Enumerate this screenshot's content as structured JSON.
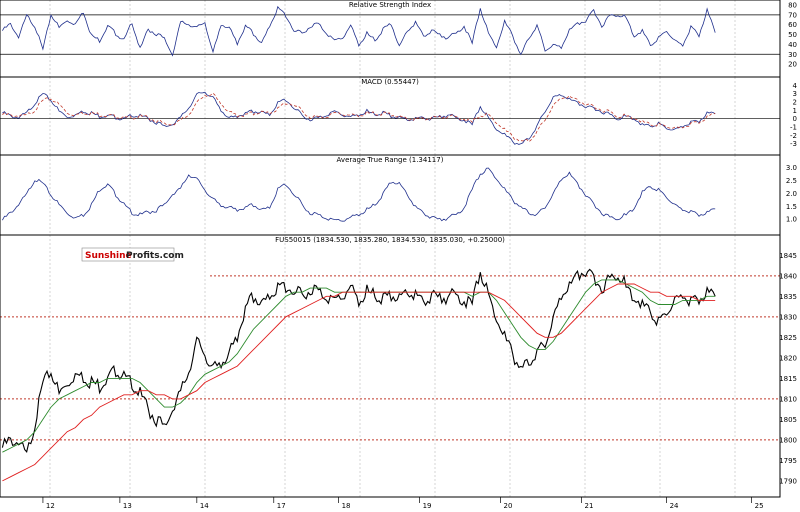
{
  "branding": {
    "logo_word1": "Sunshine",
    "logo_word2": "Profits.com",
    "logo_color1": "#cc0000",
    "logo_color2": "#222222"
  },
  "colors": {
    "rsi": "#1f2f8c",
    "macd": "#1f2f8c",
    "macd_signal": "#c0392b",
    "atr": "#1f2f8c",
    "price": "#000000",
    "ma_short": "#2e8b2e",
    "ma_long": "#e02020",
    "resistance": "#c0392b"
  },
  "chart_data": [
    {
      "type": "line",
      "id": "rsi",
      "title": "Relative Strength Index",
      "ylim": [
        10,
        80
      ],
      "yticks": [
        20,
        30,
        40,
        50,
        60,
        70,
        80
      ],
      "levels": [
        30,
        70
      ],
      "x": [
        0,
        1,
        2,
        3,
        4,
        5,
        6,
        7,
        8,
        9,
        10,
        11,
        12,
        13,
        14,
        15,
        16,
        17,
        18,
        19,
        20,
        21,
        22,
        23,
        24,
        25,
        26,
        27,
        28,
        29,
        30,
        31,
        32,
        33,
        34,
        35,
        36,
        37,
        38,
        39,
        40,
        41,
        42,
        43,
        44,
        45,
        46,
        47,
        48,
        49,
        50,
        51,
        52,
        53,
        54,
        55,
        56,
        57,
        58,
        59,
        60,
        61,
        62,
        63,
        64,
        65,
        66,
        67,
        68,
        69,
        70,
        71,
        72,
        73,
        74,
        75,
        76,
        77,
        78,
        79,
        80,
        81,
        82,
        83,
        84,
        85,
        86,
        87,
        88
      ],
      "series": [
        {
          "values": [
            55,
            62,
            48,
            70,
            60,
            35,
            72,
            58,
            66,
            62,
            74,
            50,
            45,
            60,
            52,
            45,
            64,
            36,
            56,
            52,
            47,
            30,
            63,
            62,
            58,
            64,
            32,
            62,
            58,
            42,
            60,
            52,
            42,
            60,
            78,
            70,
            55,
            52,
            60,
            62,
            53,
            45,
            48,
            60,
            40,
            52,
            45,
            56,
            62,
            38,
            55,
            63,
            50,
            55,
            50,
            48,
            52,
            60,
            42,
            78,
            52,
            38,
            64,
            50,
            30,
            48,
            60,
            35,
            40,
            38,
            55,
            62,
            65,
            75,
            60,
            70,
            72,
            68,
            50,
            55,
            40,
            48,
            55,
            45,
            40,
            58,
            50,
            76,
            52
          ]
        }
      ]
    },
    {
      "type": "line",
      "id": "macd",
      "title": "MACD (0.55447)",
      "ylim": [
        -4,
        4.4
      ],
      "yticks": [
        -3,
        -2,
        -1,
        0,
        1,
        2,
        3,
        4
      ],
      "levels": [
        0
      ],
      "x": [
        0,
        1,
        2,
        3,
        4,
        5,
        6,
        7,
        8,
        9,
        10,
        11,
        12,
        13,
        14,
        15,
        16,
        17,
        18,
        19,
        20,
        21,
        22,
        23,
        24,
        25,
        26,
        27,
        28,
        29,
        30,
        31,
        32,
        33,
        34,
        35,
        36,
        37,
        38,
        39,
        40,
        41,
        42,
        43,
        44,
        45,
        46,
        47,
        48,
        49,
        50,
        51,
        52,
        53,
        54,
        55,
        56,
        57,
        58,
        59,
        60,
        61,
        62,
        63,
        64,
        65,
        66,
        67,
        68,
        69,
        70,
        71,
        72,
        73,
        74,
        75,
        76,
        77,
        78,
        79,
        80,
        81,
        82,
        83,
        84,
        85,
        86,
        87,
        88
      ],
      "series": [
        {
          "values": [
            0.8,
            0.5,
            0.2,
            0.8,
            2.0,
            3.0,
            2.4,
            1.0,
            0.4,
            0.6,
            1.0,
            0.8,
            0.4,
            0.5,
            0.3,
            0.0,
            0.6,
            0.4,
            0.1,
            -0.3,
            -0.8,
            -0.6,
            0.2,
            1.5,
            3.0,
            3.4,
            2.6,
            1.2,
            0.2,
            0.4,
            0.8,
            1.0,
            0.9,
            0.6,
            2.0,
            2.4,
            1.4,
            0.5,
            0.1,
            0.2,
            0.6,
            1.0,
            0.6,
            0.3,
            0.5,
            1.0,
            0.6,
            0.8,
            0.4,
            0.2,
            0.0,
            0.1,
            0.3,
            0.1,
            0.3,
            0.6,
            0.2,
            0.0,
            -0.6,
            1.6,
            0.2,
            -1.2,
            -1.8,
            -2.6,
            -3.0,
            -2.2,
            -0.8,
            1.0,
            2.6,
            3.0,
            2.4,
            2.0,
            1.6,
            1.3,
            1.0,
            0.6,
            0.2,
            0.4,
            0.2,
            -0.6,
            -0.8,
            -0.4,
            -1.0,
            -1.2,
            -0.8,
            -0.4,
            -0.2,
            0.8,
            0.6
          ]
        },
        {
          "values": [
            0.6,
            0.6,
            0.4,
            0.5,
            1.2,
            2.2,
            2.6,
            1.8,
            0.9,
            0.6,
            0.8,
            0.8,
            0.6,
            0.5,
            0.4,
            0.2,
            0.3,
            0.4,
            0.2,
            -0.1,
            -0.5,
            -0.6,
            -0.2,
            0.7,
            2.0,
            3.0,
            3.0,
            2.0,
            0.9,
            0.5,
            0.6,
            0.8,
            0.9,
            0.8,
            1.3,
            2.0,
            1.8,
            1.0,
            0.4,
            0.3,
            0.4,
            0.8,
            0.7,
            0.5,
            0.4,
            0.8,
            0.7,
            0.7,
            0.6,
            0.3,
            0.1,
            0.1,
            0.2,
            0.2,
            0.2,
            0.4,
            0.3,
            0.1,
            -0.3,
            0.5,
            0.6,
            -0.4,
            -1.2,
            -2.0,
            -2.6,
            -2.5,
            -1.5,
            0.0,
            1.6,
            2.6,
            2.7,
            2.3,
            1.9,
            1.5,
            1.2,
            0.9,
            0.5,
            0.4,
            0.3,
            -0.2,
            -0.6,
            -0.5,
            -0.8,
            -1.0,
            -0.9,
            -0.6,
            -0.3,
            0.3,
            0.6
          ]
        }
      ]
    },
    {
      "type": "line",
      "id": "atr",
      "title": "Average True Range (1.34117)",
      "ylim": [
        0.5,
        3.3
      ],
      "yticks": [
        1.0,
        1.5,
        2.0,
        2.5,
        3.0
      ],
      "x": [
        0,
        1,
        2,
        3,
        4,
        5,
        6,
        7,
        8,
        9,
        10,
        11,
        12,
        13,
        14,
        15,
        16,
        17,
        18,
        19,
        20,
        21,
        22,
        23,
        24,
        25,
        26,
        27,
        28,
        29,
        30,
        31,
        32,
        33,
        34,
        35,
        36,
        37,
        38,
        39,
        40,
        41,
        42,
        43,
        44,
        45,
        46,
        47,
        48,
        49,
        50,
        51,
        52,
        53,
        54,
        55,
        56,
        57,
        58,
        59,
        60,
        61,
        62,
        63,
        64,
        65,
        66,
        67,
        68,
        69,
        70,
        71,
        72,
        73,
        74,
        75,
        76,
        77,
        78,
        79,
        80,
        81,
        82,
        83,
        84,
        85,
        86,
        87,
        88
      ],
      "series": [
        {
          "values": [
            1.0,
            1.3,
            1.6,
            2.0,
            2.6,
            2.4,
            2.0,
            1.6,
            1.3,
            1.1,
            1.2,
            1.6,
            2.2,
            2.4,
            2.0,
            1.6,
            1.3,
            1.2,
            1.3,
            1.4,
            1.6,
            2.0,
            2.2,
            2.8,
            2.6,
            2.2,
            1.8,
            1.6,
            1.5,
            1.4,
            1.5,
            1.6,
            1.4,
            1.5,
            2.2,
            2.4,
            2.0,
            1.6,
            1.3,
            1.2,
            1.1,
            1.0,
            1.0,
            1.1,
            1.2,
            1.4,
            1.6,
            2.0,
            2.5,
            2.4,
            2.0,
            1.5,
            1.3,
            1.1,
            1.0,
            1.1,
            1.2,
            1.5,
            2.2,
            2.8,
            3.0,
            2.6,
            2.2,
            1.8,
            1.5,
            1.3,
            1.2,
            1.5,
            2.0,
            2.6,
            2.8,
            2.4,
            2.0,
            1.6,
            1.3,
            1.1,
            1.1,
            1.2,
            1.5,
            2.1,
            2.3,
            2.2,
            1.9,
            1.6,
            1.4,
            1.3,
            1.2,
            1.3,
            1.4
          ]
        }
      ]
    },
    {
      "type": "line",
      "id": "price",
      "title": "FUS50015 (1834.530, 1835.280, 1834.530, 1835.030, +0.25000)",
      "ylim": [
        1789,
        1848
      ],
      "yticks": [
        1790,
        1795,
        1800,
        1805,
        1810,
        1815,
        1820,
        1825,
        1830,
        1835,
        1840,
        1845
      ],
      "levels": [
        1840,
        1830,
        1810,
        1800
      ],
      "x": [
        0,
        1,
        2,
        3,
        4,
        5,
        6,
        7,
        8,
        9,
        10,
        11,
        12,
        13,
        14,
        15,
        16,
        17,
        18,
        19,
        20,
        21,
        22,
        23,
        24,
        25,
        26,
        27,
        28,
        29,
        30,
        31,
        32,
        33,
        34,
        35,
        36,
        37,
        38,
        39,
        40,
        41,
        42,
        43,
        44,
        45,
        46,
        47,
        48,
        49,
        50,
        51,
        52,
        53,
        54,
        55,
        56,
        57,
        58,
        59,
        60,
        61,
        62,
        63,
        64,
        65,
        66,
        67,
        68,
        69,
        70,
        71,
        72,
        73,
        74,
        75,
        76,
        77,
        78,
        79,
        80,
        81,
        82,
        83,
        84,
        85,
        86,
        87,
        88
      ],
      "xticks": [
        {
          "x": 5,
          "label": "12"
        },
        {
          "x": 14.5,
          "label": "13"
        },
        {
          "x": 24,
          "label": "14"
        },
        {
          "x": 33.5,
          "label": "17"
        },
        {
          "x": 41.5,
          "label": "18"
        },
        {
          "x": 51.5,
          "label": "19"
        },
        {
          "x": 61.5,
          "label": "20"
        },
        {
          "x": 71.5,
          "label": "21"
        },
        {
          "x": 82,
          "label": "24"
        },
        {
          "x": 92.5,
          "label": "25"
        }
      ],
      "xlim": [
        -0.3,
        96
      ],
      "series": [
        {
          "name": "Price",
          "values": [
            1799,
            1801,
            1800,
            1797,
            1805,
            1814,
            1818,
            1812,
            1815,
            1817,
            1816,
            1815,
            1814,
            1816,
            1818,
            1816,
            1815,
            1812,
            1808,
            1806,
            1804,
            1808,
            1812,
            1818,
            1825,
            1822,
            1818,
            1820,
            1822,
            1826,
            1833,
            1836,
            1834,
            1836,
            1838,
            1838,
            1837,
            1836,
            1838,
            1837,
            1836,
            1835,
            1836,
            1838,
            1834,
            1837,
            1836,
            1835,
            1836,
            1835,
            1837,
            1836,
            1835,
            1836,
            1835,
            1836,
            1836,
            1835,
            1834,
            1842,
            1836,
            1830,
            1826,
            1822,
            1818,
            1820,
            1822,
            1824,
            1830,
            1836,
            1838,
            1841,
            1842,
            1840,
            1838,
            1840,
            1842,
            1838,
            1836,
            1834,
            1832,
            1830,
            1832,
            1835,
            1836,
            1834,
            1835,
            1837,
            1835
          ]
        },
        {
          "name": "MA short",
          "values": [
            1797,
            1798,
            1799,
            1800,
            1802,
            1805,
            1808,
            1810,
            1811,
            1812,
            1813,
            1814,
            1814,
            1815,
            1815,
            1815,
            1815,
            1814,
            1812,
            1810,
            1808,
            1808,
            1809,
            1811,
            1814,
            1816,
            1817,
            1818,
            1819,
            1821,
            1824,
            1827,
            1829,
            1831,
            1833,
            1835,
            1836,
            1836,
            1837,
            1837,
            1837,
            1836,
            1836,
            1836,
            1836,
            1836,
            1836,
            1836,
            1836,
            1836,
            1836,
            1836,
            1836,
            1836,
            1836,
            1836,
            1836,
            1836,
            1835,
            1836,
            1836,
            1834,
            1831,
            1828,
            1825,
            1823,
            1822,
            1822,
            1824,
            1827,
            1830,
            1833,
            1836,
            1838,
            1839,
            1839,
            1839,
            1838,
            1837,
            1836,
            1834,
            1833,
            1833,
            1833,
            1834,
            1834,
            1834,
            1835,
            1835
          ]
        },
        {
          "name": "MA long",
          "values": [
            1790,
            1791,
            1792,
            1793,
            1794,
            1796,
            1798,
            1800,
            1802,
            1803,
            1805,
            1806,
            1808,
            1809,
            1810,
            1811,
            1811,
            1812,
            1812,
            1811,
            1811,
            1810,
            1810,
            1811,
            1812,
            1814,
            1815,
            1816,
            1817,
            1818,
            1820,
            1822,
            1824,
            1826,
            1828,
            1830,
            1831,
            1832,
            1833,
            1834,
            1835,
            1835,
            1836,
            1836,
            1836,
            1836,
            1836,
            1836,
            1836,
            1836,
            1836,
            1836,
            1836,
            1836,
            1836,
            1836,
            1836,
            1836,
            1836,
            1836,
            1836,
            1835,
            1834,
            1832,
            1830,
            1828,
            1826,
            1825,
            1825,
            1826,
            1828,
            1830,
            1832,
            1834,
            1836,
            1837,
            1838,
            1838,
            1838,
            1837,
            1836,
            1836,
            1835,
            1835,
            1835,
            1835,
            1834,
            1834,
            1834
          ]
        }
      ]
    }
  ]
}
